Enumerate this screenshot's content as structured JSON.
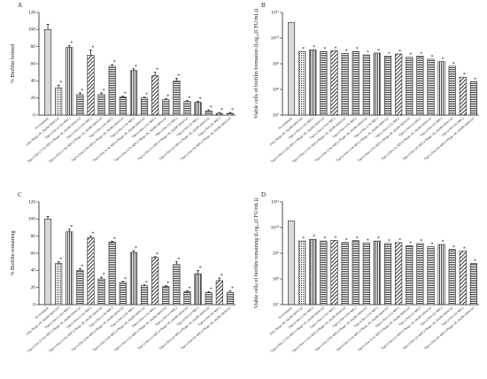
{
  "chart_data": [
    {
      "type": "bar",
      "label": "A",
      "ylabel": "% Biofilm formed",
      "categories": [
        "No treatment",
        "Only Phage vB_AbaM-ABW110",
        "Tigecycline (1/32x MIC)",
        "Tigecycline (1/32x MIC)+Phage vB_AbaM-ABW110",
        "Tigecycline (1/16x MIC)",
        "Tigecycline (1/16x MIC)+Phage vB_AbaM-ABW110",
        "Tigecycline (1/8x MIC)",
        "Tigecycline (1/8x MIC)+Phage vB_AbaM-ABW110",
        "Tigecycline (1/4x MIC)",
        "Tigecycline (1/4x MIC)+Phage vB_AbaM-ABW110",
        "Tigecycline (1/2x MIC)",
        "Tigecycline (1/2x MIC)+Phage vB_AbaM-ABW110",
        "Tigecycline (1x MIC)",
        "Tigecycline (1x MIC)+Phage vB_AbaM-ABW110",
        "Tigecycline (2x MIC)",
        "Tigecycline (2x MIC)+Phage vB_AbaM-ABW110",
        "Tigecycline (4x MIC)",
        "Tigecycline (4x MIC)+Phage vB_AbaM-ABW110"
      ],
      "values": [
        100,
        32,
        79,
        24,
        70,
        24,
        57,
        21,
        52,
        20,
        46,
        18,
        40,
        16,
        15,
        5,
        2,
        2
      ],
      "errors": [
        6,
        3,
        2,
        2,
        6,
        2,
        2,
        1,
        2,
        1,
        4,
        1,
        3,
        1,
        1,
        1,
        1,
        1
      ],
      "significance": [
        null,
        "*",
        "*",
        "*",
        "*",
        "*",
        "*",
        "*",
        "*",
        "*",
        "*",
        "*",
        "*",
        "*",
        "*",
        "*",
        "*",
        "*"
      ],
      "ylim": [
        0,
        120
      ],
      "yticks": [
        0,
        20,
        40,
        60,
        80,
        100,
        120
      ],
      "log_scale": false
    },
    {
      "type": "bar",
      "label": "B",
      "ylabel": "Viable cells of biofilm formation (Log₁₀(CFU/mL))",
      "categories": [
        "No treatment",
        "Only Phage vB_AbaM-ABW110",
        "Tigecycline (1/32x MIC)",
        "Tigecycline (1/32x MIC)+Phage vB_AbaM-ABW110",
        "Tigecycline (1/16x MIC)",
        "Tigecycline (1/16x MIC)+Phage vB_AbaM-ABW110",
        "Tigecycline (1/8x MIC)",
        "Tigecycline (1/8x MIC)+Phage vB_AbaM-ABW110",
        "Tigecycline (1/4x MIC)",
        "Tigecycline (1/4x MIC)+Phage vB_AbaM-ABW110",
        "Tigecycline (1/2x MIC)",
        "Tigecycline (1/2x MIC)+Phage vB_AbaM-ABW110",
        "Tigecycline (1x MIC)",
        "Tigecycline (1x MIC)+Phage vB_AbaM-ABW110",
        "Tigecycline (2x MIC)",
        "Tigecycline (2x MIC)+Phage vB_AbaM-ABW110",
        "Tigecycline (4x MIC)",
        "Tigecycline (4x MIC)+Phage vB_AbaM-ABW110"
      ],
      "values": [
        40000000000,
        3000000000,
        3500000000,
        3000000000,
        3200000000,
        2500000000,
        3000000000,
        2200000000,
        2600000000,
        2000000000,
        2400000000,
        1800000000,
        2000000000,
        1500000000,
        1200000000,
        800000000,
        300000000,
        200000000
      ],
      "significance": [
        null,
        "*",
        "*",
        "*",
        "*",
        "*",
        "*",
        "*",
        "*",
        "*",
        "*",
        "*",
        "*",
        "*",
        "*",
        "*",
        "*",
        "*"
      ],
      "ylim": [
        10000000,
        100000000000
      ],
      "yticks": [
        {
          "value": 10000000,
          "label": "10⁷"
        },
        {
          "value": 100000000,
          "label": "10⁸"
        },
        {
          "value": 1000000000,
          "label": "10⁹"
        },
        {
          "value": 10000000000,
          "label": "10¹⁰"
        },
        {
          "value": 100000000000,
          "label": "10¹¹"
        }
      ],
      "log_scale": true
    },
    {
      "type": "bar",
      "label": "C",
      "ylabel": "% Biofilm remaining",
      "categories": [
        "No treatment",
        "Only Phage vB_AbaM-ABW110",
        "Tigecycline (1/32x MIC)",
        "Tigecycline (1/32x MIC)+Phage vB_AbaM-ABW110",
        "Tigecycline (1/16x MIC)",
        "Tigecycline (1/16x MIC)+Phage vB_AbaM-ABW110",
        "Tigecycline (1/8x MIC)",
        "Tigecycline (1/8x MIC)+Phage vB_AbaM-ABW110",
        "Tigecycline (1/4x MIC)",
        "Tigecycline (1/4x MIC)+Phage vB_AbaM-ABW110",
        "Tigecycline (1/2x MIC)",
        "Tigecycline (1/2x MIC)+Phage vB_AbaM-ABW110",
        "Tigecycline (1x MIC)",
        "Tigecycline (1x MIC)+Phage vB_AbaM-ABW110",
        "Tigecycline (2x MIC)",
        "Tigecycline (2x MIC)+Phage vB_AbaM-ABW110",
        "Tigecycline (4x MIC)",
        "Tigecycline (4x MIC)+Phage vB_AbaM-ABW110"
      ],
      "values": [
        100,
        48,
        85,
        40,
        78,
        30,
        73,
        26,
        61,
        22,
        55,
        21,
        47,
        15,
        36,
        14,
        28,
        14
      ],
      "errors": [
        3,
        2,
        3,
        2,
        2,
        2,
        1,
        1,
        2,
        1,
        1,
        1,
        3,
        1,
        4,
        1,
        3,
        2
      ],
      "significance": [
        null,
        "*",
        "*",
        "*",
        "*",
        "*",
        "*",
        "*",
        "*",
        "*",
        "*",
        "*",
        "*",
        "*",
        "*",
        "*",
        "*",
        "*"
      ],
      "ylim": [
        0,
        120
      ],
      "yticks": [
        0,
        20,
        40,
        60,
        80,
        100,
        120
      ],
      "log_scale": false
    },
    {
      "type": "bar",
      "label": "D",
      "ylabel": "Viable cells of biofilm remaining (Log₁₀(CFU/mL))",
      "categories": [
        "No treatment",
        "Only Phage vB_AbaM-ABW110",
        "Tigecycline (1/32x MIC)",
        "Tigecycline (1/32x MIC)+Phage vB_AbaM-ABW110",
        "Tigecycline (1/16x MIC)",
        "Tigecycline (1/16x MIC)+Phage vB_AbaM-ABW110",
        "Tigecycline (1/8x MIC)",
        "Tigecycline (1/8x MIC)+Phage vB_AbaM-ABW110",
        "Tigecycline (1/4x MIC)",
        "Tigecycline (1/4x MIC)+Phage vB_AbaM-ABW110",
        "Tigecycline (1/2x MIC)",
        "Tigecycline (1/2x MIC)+Phage vB_AbaM-ABW110",
        "Tigecycline (1x MIC)",
        "Tigecycline (1x MIC)+Phage vB_AbaM-ABW110",
        "Tigecycline (2x MIC)",
        "Tigecycline (2x MIC)+Phage vB_AbaM-ABW110",
        "Tigecycline (4x MIC)",
        "Tigecycline (4x MIC)+Phage vB_AbaM-ABW110"
      ],
      "values": [
        18000000000,
        3000000000,
        3500000000,
        3000000000,
        3200000000,
        2600000000,
        3100000000,
        2500000000,
        3000000000,
        2400000000,
        2600000000,
        2000000000,
        2400000000,
        1800000000,
        2200000000,
        1400000000,
        1200000000,
        400000000
      ],
      "significance": [
        null,
        "*",
        "*",
        "*",
        "*",
        "*",
        "*",
        "*",
        "*",
        "*",
        "*",
        "*",
        "*",
        "*",
        "*",
        "*",
        "*",
        "*"
      ],
      "ylim": [
        10000000,
        100000000000
      ],
      "yticks": [
        {
          "value": 10000000,
          "label": "10⁷"
        },
        {
          "value": 100000000,
          "label": "10⁸"
        },
        {
          "value": 1000000000,
          "label": "10⁹"
        },
        {
          "value": 10000000000,
          "label": "10¹⁰"
        },
        {
          "value": 100000000000,
          "label": "10¹¹"
        }
      ],
      "log_scale": true
    }
  ]
}
